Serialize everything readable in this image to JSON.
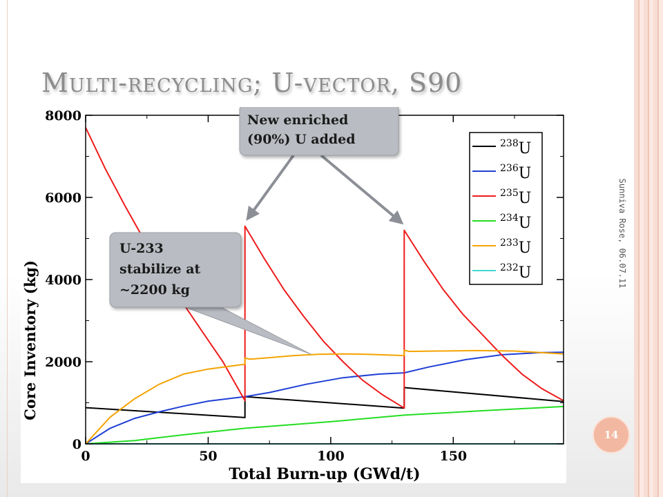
{
  "slide": {
    "title": "Multi-recycling; U-vector, S90",
    "author_date": "Sunniva Rose, 06.07.11",
    "page_number": "14"
  },
  "callouts": {
    "enriched": [
      "New enriched",
      "(90%) U added"
    ],
    "u233": [
      "U-233",
      "stabilize at",
      "~2200 kg"
    ]
  },
  "colors": {
    "u238": "#000000",
    "u236": "#1f3fd6",
    "u235": "#ee1b1b",
    "u234": "#22dd22",
    "u233": "#f5a300",
    "u232": "#40d8d0",
    "callout_fill": "#b9bcc2",
    "arrow": "#8c8f96"
  },
  "chart_data": {
    "type": "line",
    "xlabel": "Total Burn-up (GWd/t)",
    "ylabel": "Core Inventory (kg)",
    "xlim": [
      0,
      195
    ],
    "ylim": [
      0,
      8000
    ],
    "xticks": [
      0,
      50,
      100,
      150
    ],
    "yticks": [
      0,
      2000,
      4000,
      6000,
      8000
    ],
    "grid": false,
    "legend_position": "top-right",
    "series": [
      {
        "name": "238U",
        "mass": "238",
        "color": "#000000",
        "x": [
          0,
          65,
          65,
          130,
          130,
          195
        ],
        "y": [
          880,
          640,
          1150,
          870,
          1370,
          1030
        ]
      },
      {
        "name": "236U",
        "mass": "236",
        "color": "#1f3fd6",
        "x": [
          0,
          10,
          20,
          30,
          40,
          50,
          65,
          75,
          90,
          105,
          120,
          130,
          140,
          155,
          170,
          185,
          195
        ],
        "y": [
          0,
          380,
          620,
          780,
          920,
          1040,
          1150,
          1250,
          1450,
          1610,
          1700,
          1730,
          1870,
          2050,
          2170,
          2220,
          2230
        ]
      },
      {
        "name": "235U",
        "mass": "235",
        "color": "#ee1b1b",
        "x": [
          0,
          8,
          16,
          24,
          32,
          40,
          48,
          56,
          65,
          65,
          73,
          81,
          89,
          97,
          105,
          113,
          121,
          130,
          130,
          138,
          146,
          154,
          162,
          170,
          178,
          186,
          195
        ],
        "y": [
          7700,
          6700,
          5800,
          4950,
          4200,
          3400,
          2700,
          2000,
          1050,
          5300,
          4500,
          3750,
          3100,
          2500,
          2000,
          1550,
          1200,
          870,
          5200,
          4450,
          3750,
          3150,
          2650,
          2150,
          1700,
          1350,
          1050
        ]
      },
      {
        "name": "234U",
        "mass": "234",
        "color": "#22dd22",
        "x": [
          0,
          20,
          40,
          65,
          100,
          130,
          160,
          195
        ],
        "y": [
          0,
          80,
          220,
          380,
          540,
          700,
          800,
          910
        ]
      },
      {
        "name": "233U",
        "mass": "233",
        "color": "#f5a300",
        "x": [
          0,
          10,
          20,
          30,
          40,
          50,
          65,
          65,
          67,
          75,
          85,
          95,
          105,
          115,
          130,
          130,
          132,
          145,
          160,
          175,
          195
        ],
        "y": [
          0,
          650,
          1100,
          1450,
          1700,
          1820,
          1940,
          2090,
          2060,
          2100,
          2150,
          2180,
          2190,
          2180,
          2150,
          2280,
          2250,
          2260,
          2270,
          2260,
          2190
        ]
      },
      {
        "name": "232U",
        "mass": "232",
        "color": "#40d8d0",
        "x": [
          0,
          195
        ],
        "y": [
          0,
          0
        ]
      }
    ]
  }
}
